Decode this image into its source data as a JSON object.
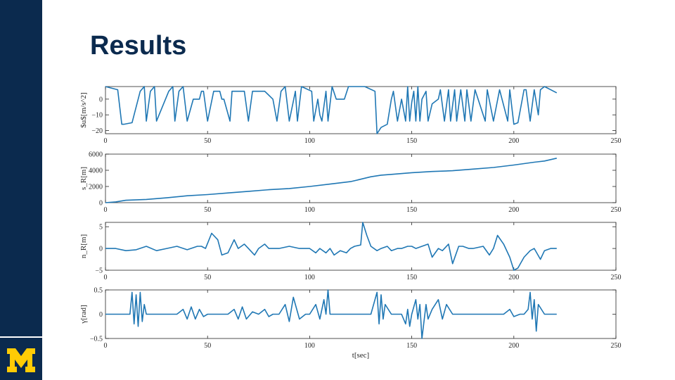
{
  "slide": {
    "title": "Results",
    "logo": "block-m-logo",
    "colors": {
      "navy": "#0b2a4e",
      "maize": "#ffcb05",
      "line": "#1f77b4"
    }
  },
  "chart_data": [
    {
      "type": "line",
      "ylabel": "$u$[m/s^2]",
      "xlim": [
        0,
        250
      ],
      "ylim": [
        -22,
        8
      ],
      "xticks": [
        0,
        50,
        100,
        150,
        200,
        250
      ],
      "yticks": [
        -20,
        -10,
        0
      ],
      "series": [
        {
          "x": [
            0,
            6,
            8,
            9,
            13,
            17,
            19,
            20,
            22,
            24,
            25,
            31,
            33,
            34,
            36,
            38,
            40,
            43,
            46,
            47,
            48,
            50,
            53,
            56,
            57,
            58,
            61,
            62,
            68,
            70,
            72,
            78,
            82,
            84,
            86,
            88,
            90,
            93,
            94,
            96,
            101,
            102,
            104,
            105,
            106,
            108,
            109,
            111,
            113,
            117,
            119,
            127,
            132,
            133,
            135,
            138,
            140,
            141,
            143,
            145,
            147,
            148,
            149,
            150,
            151,
            152,
            153,
            154,
            155,
            157,
            158,
            160,
            162,
            163,
            164,
            166,
            168,
            169,
            171,
            172,
            174,
            176,
            177,
            179,
            181,
            186,
            187,
            190,
            193,
            197,
            198,
            200,
            202,
            205,
            206,
            208,
            210,
            212,
            213,
            215,
            221
          ],
          "y": [
            8,
            6,
            -16,
            -16,
            -15,
            5,
            8,
            -14,
            5,
            8,
            -14,
            5,
            8,
            -14,
            5,
            8,
            -14,
            0,
            0,
            5,
            5,
            -14,
            5,
            5,
            0,
            0,
            -14,
            5,
            5,
            -14,
            5,
            5,
            0,
            -14,
            5,
            8,
            -14,
            5,
            -14,
            8,
            5,
            -14,
            0,
            -10,
            -14,
            5,
            -14,
            8,
            0,
            0,
            8,
            8,
            5,
            -22,
            -18,
            -16,
            0,
            5,
            -14,
            0,
            -14,
            8,
            -14,
            -2,
            5,
            -14,
            8,
            -14,
            0,
            5,
            -14,
            -3,
            -1,
            0,
            6,
            -14,
            6,
            -14,
            6,
            -14,
            6,
            -14,
            6,
            -14,
            6,
            -14,
            6,
            -14,
            6,
            -14,
            6,
            -16,
            -15,
            6,
            6,
            -14,
            6,
            -10,
            6,
            8,
            4
          ]
        }
      ]
    },
    {
      "type": "line",
      "ylabel": "s_R[m]",
      "xlim": [
        0,
        250
      ],
      "ylim": [
        0,
        6000
      ],
      "xticks": [
        0,
        50,
        100,
        150,
        200,
        250
      ],
      "yticks": [
        0,
        2000,
        4000,
        6000
      ],
      "series": [
        {
          "x": [
            0,
            5,
            10,
            20,
            30,
            40,
            50,
            60,
            70,
            80,
            90,
            100,
            110,
            120,
            125,
            130,
            135,
            140,
            150,
            160,
            170,
            180,
            190,
            200,
            210,
            215,
            221
          ],
          "y": [
            0,
            100,
            300,
            400,
            600,
            850,
            1000,
            1200,
            1400,
            1600,
            1750,
            2000,
            2300,
            2600,
            2900,
            3200,
            3400,
            3500,
            3700,
            3850,
            3950,
            4150,
            4350,
            4650,
            5000,
            5150,
            5500
          ]
        }
      ]
    },
    {
      "type": "line",
      "ylabel": "n_R[m]",
      "xlim": [
        0,
        250
      ],
      "ylim": [
        -5,
        6
      ],
      "xticks": [
        0,
        50,
        100,
        150,
        200,
        250
      ],
      "yticks": [
        -5,
        0,
        5
      ],
      "series": [
        {
          "x": [
            0,
            5,
            10,
            15,
            20,
            25,
            30,
            35,
            40,
            45,
            47,
            49,
            52,
            55,
            57,
            60,
            63,
            65,
            68,
            70,
            73,
            75,
            78,
            80,
            85,
            90,
            95,
            100,
            103,
            105,
            108,
            110,
            112,
            115,
            118,
            120,
            122,
            125,
            126,
            128,
            130,
            133,
            135,
            138,
            140,
            143,
            145,
            148,
            150,
            152,
            155,
            158,
            160,
            163,
            165,
            168,
            170,
            173,
            175,
            178,
            180,
            185,
            188,
            190,
            192,
            195,
            198,
            200,
            202,
            205,
            208,
            210,
            213,
            215,
            218,
            221
          ],
          "y": [
            0,
            0,
            -0.5,
            -0.3,
            0.5,
            -0.5,
            0,
            0.5,
            -0.3,
            0.5,
            0.5,
            0,
            3.5,
            2,
            -1.5,
            -1,
            2,
            0,
            1,
            0,
            -1.5,
            0,
            1,
            0,
            0,
            0.5,
            0,
            0,
            -1,
            0,
            -1,
            0,
            -1.5,
            -0.5,
            -1,
            0,
            0.5,
            0.8,
            6,
            3,
            0.5,
            -0.5,
            0,
            0.5,
            -0.5,
            0,
            0,
            0.5,
            0.5,
            0,
            0.5,
            1,
            -2,
            0,
            -0.5,
            1,
            -3.5,
            0.5,
            0.5,
            0,
            0,
            0.5,
            -1.5,
            0,
            3,
            1,
            -2,
            -5,
            -4.5,
            -2,
            -0.5,
            0,
            -2.5,
            -0.5,
            0,
            0
          ]
        }
      ]
    },
    {
      "type": "line",
      "ylabel": "γ[rad]",
      "xlabel": "t[sec]",
      "xlim": [
        0,
        250
      ],
      "ylim": [
        -0.5,
        0.5
      ],
      "xticks": [
        0,
        50,
        100,
        150,
        200,
        250
      ],
      "yticks": [
        -0.5,
        0,
        0.5
      ],
      "series": [
        {
          "x": [
            0,
            12,
            13,
            14,
            15,
            16,
            17,
            18,
            19,
            20,
            25,
            35,
            38,
            40,
            42,
            44,
            46,
            48,
            50,
            55,
            60,
            63,
            65,
            67,
            69,
            72,
            75,
            78,
            80,
            82,
            85,
            88,
            90,
            92,
            95,
            98,
            100,
            103,
            105,
            107,
            108,
            109,
            110,
            112,
            115,
            130,
            133,
            134,
            135,
            136,
            137,
            140,
            145,
            147,
            148,
            149,
            150,
            152,
            153,
            154,
            155,
            157,
            158,
            160,
            163,
            165,
            167,
            170,
            175,
            180,
            185,
            195,
            198,
            200,
            203,
            205,
            207,
            208,
            209,
            210,
            211,
            212,
            215,
            221
          ],
          "y": [
            0,
            0,
            0.45,
            -0.2,
            0.4,
            -0.25,
            0.45,
            -0.15,
            0.2,
            0,
            0,
            0,
            0.1,
            -0.1,
            0.15,
            -0.1,
            0.1,
            -0.05,
            0,
            0,
            0,
            0.1,
            -0.1,
            0.15,
            -0.1,
            0.05,
            0,
            0.1,
            -0.05,
            0,
            0,
            0.2,
            -0.15,
            0.35,
            -0.1,
            0,
            0,
            0.2,
            -0.1,
            0.3,
            0,
            0.5,
            0,
            0,
            0,
            0,
            0.45,
            -0.2,
            0.4,
            -0.1,
            0.2,
            0,
            0,
            -0.2,
            0.1,
            -0.25,
            0,
            0.3,
            -0.1,
            0.2,
            -0.5,
            0.2,
            -0.1,
            0.1,
            0.3,
            -0.1,
            0.2,
            0,
            0,
            0,
            0,
            0,
            0.1,
            -0.05,
            0,
            0,
            0.1,
            0.45,
            -0.1,
            0.3,
            -0.35,
            0.2,
            0,
            0
          ]
        }
      ]
    }
  ]
}
